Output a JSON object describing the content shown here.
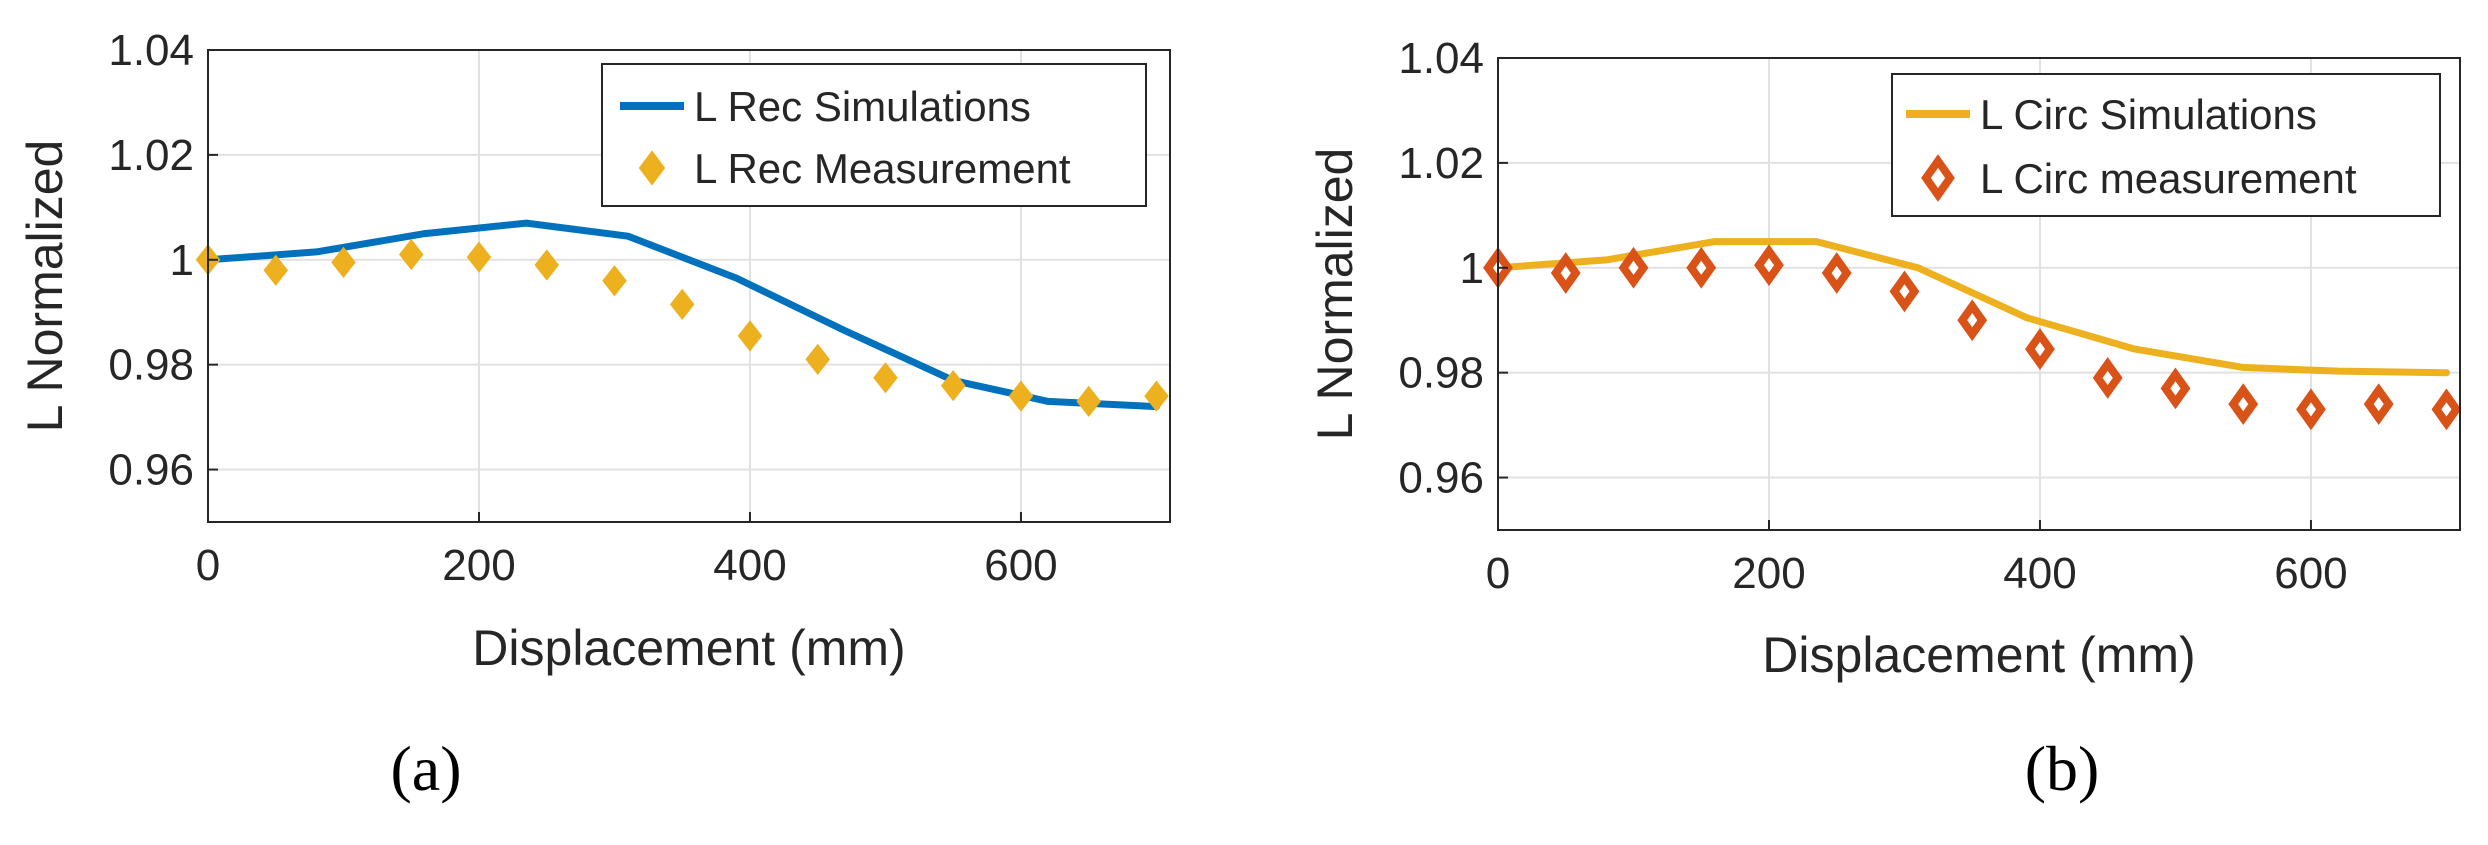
{
  "figure": {
    "panels": [
      "(a)",
      "(b)"
    ]
  },
  "chart_data": [
    {
      "type": "line",
      "panel_label": "(a)",
      "xlabel": "Displacement (mm)",
      "ylabel": "L Normalized",
      "xlim": [
        0,
        710
      ],
      "ylim": [
        0.95,
        1.04
      ],
      "xticks": [
        0,
        200,
        400,
        600
      ],
      "xtick_labels": [
        "0",
        "200",
        "400",
        "600"
      ],
      "yticks": [
        0.96,
        0.98,
        1,
        1.02,
        1.04
      ],
      "ytick_labels": [
        "0.96",
        "0.98",
        "1",
        "1.02",
        "1.04"
      ],
      "grid": true,
      "legend_position": "top-right",
      "series": [
        {
          "name": "L Rec Simulations",
          "kind": "line",
          "color": "#0072BD",
          "x": [
            0,
            80,
            160,
            235,
            310,
            390,
            470,
            550,
            620,
            700
          ],
          "y": [
            1.0,
            1.0015,
            1.005,
            1.007,
            1.0045,
            0.9965,
            0.9865,
            0.977,
            0.973,
            0.972
          ]
        },
        {
          "name": "L Rec Measurement",
          "kind": "scatter",
          "marker": "diamond-filled",
          "color": "#EDB120",
          "x": [
            0,
            50,
            100,
            150,
            200,
            250,
            300,
            350,
            400,
            450,
            500,
            550,
            600,
            650,
            700
          ],
          "y": [
            1.0,
            0.998,
            0.9995,
            1.001,
            1.0005,
            0.999,
            0.996,
            0.9915,
            0.9855,
            0.981,
            0.9775,
            0.976,
            0.974,
            0.973,
            0.974
          ]
        }
      ]
    },
    {
      "type": "line",
      "panel_label": "(b)",
      "xlabel": "Displacement (mm)",
      "ylabel": "L Normalized",
      "xlim": [
        0,
        710
      ],
      "ylim": [
        0.95,
        1.04
      ],
      "xticks": [
        0,
        200,
        400,
        600
      ],
      "xtick_labels": [
        "0",
        "200",
        "400",
        "600"
      ],
      "yticks": [
        0.96,
        0.98,
        1,
        1.02,
        1.04
      ],
      "ytick_labels": [
        "0.96",
        "0.98",
        "1",
        "1.02",
        "1.04"
      ],
      "grid": true,
      "legend_position": "top-right",
      "series": [
        {
          "name": "L Circ Simulations",
          "kind": "line",
          "color": "#EDB120",
          "x": [
            0,
            80,
            160,
            235,
            310,
            390,
            470,
            550,
            620,
            700
          ],
          "y": [
            1.0,
            1.0015,
            1.005,
            1.005,
            1.0,
            0.9905,
            0.9845,
            0.981,
            0.9803,
            0.98
          ]
        },
        {
          "name": "L Circ measurement",
          "kind": "scatter",
          "marker": "diamond-open",
          "color": "#D95319",
          "x": [
            0,
            50,
            100,
            150,
            200,
            250,
            300,
            350,
            400,
            450,
            500,
            550,
            600,
            650,
            700
          ],
          "y": [
            1.0,
            0.999,
            1.0,
            1.0,
            1.0005,
            0.999,
            0.9955,
            0.99,
            0.9845,
            0.979,
            0.977,
            0.974,
            0.973,
            0.974,
            0.973
          ]
        }
      ]
    }
  ]
}
